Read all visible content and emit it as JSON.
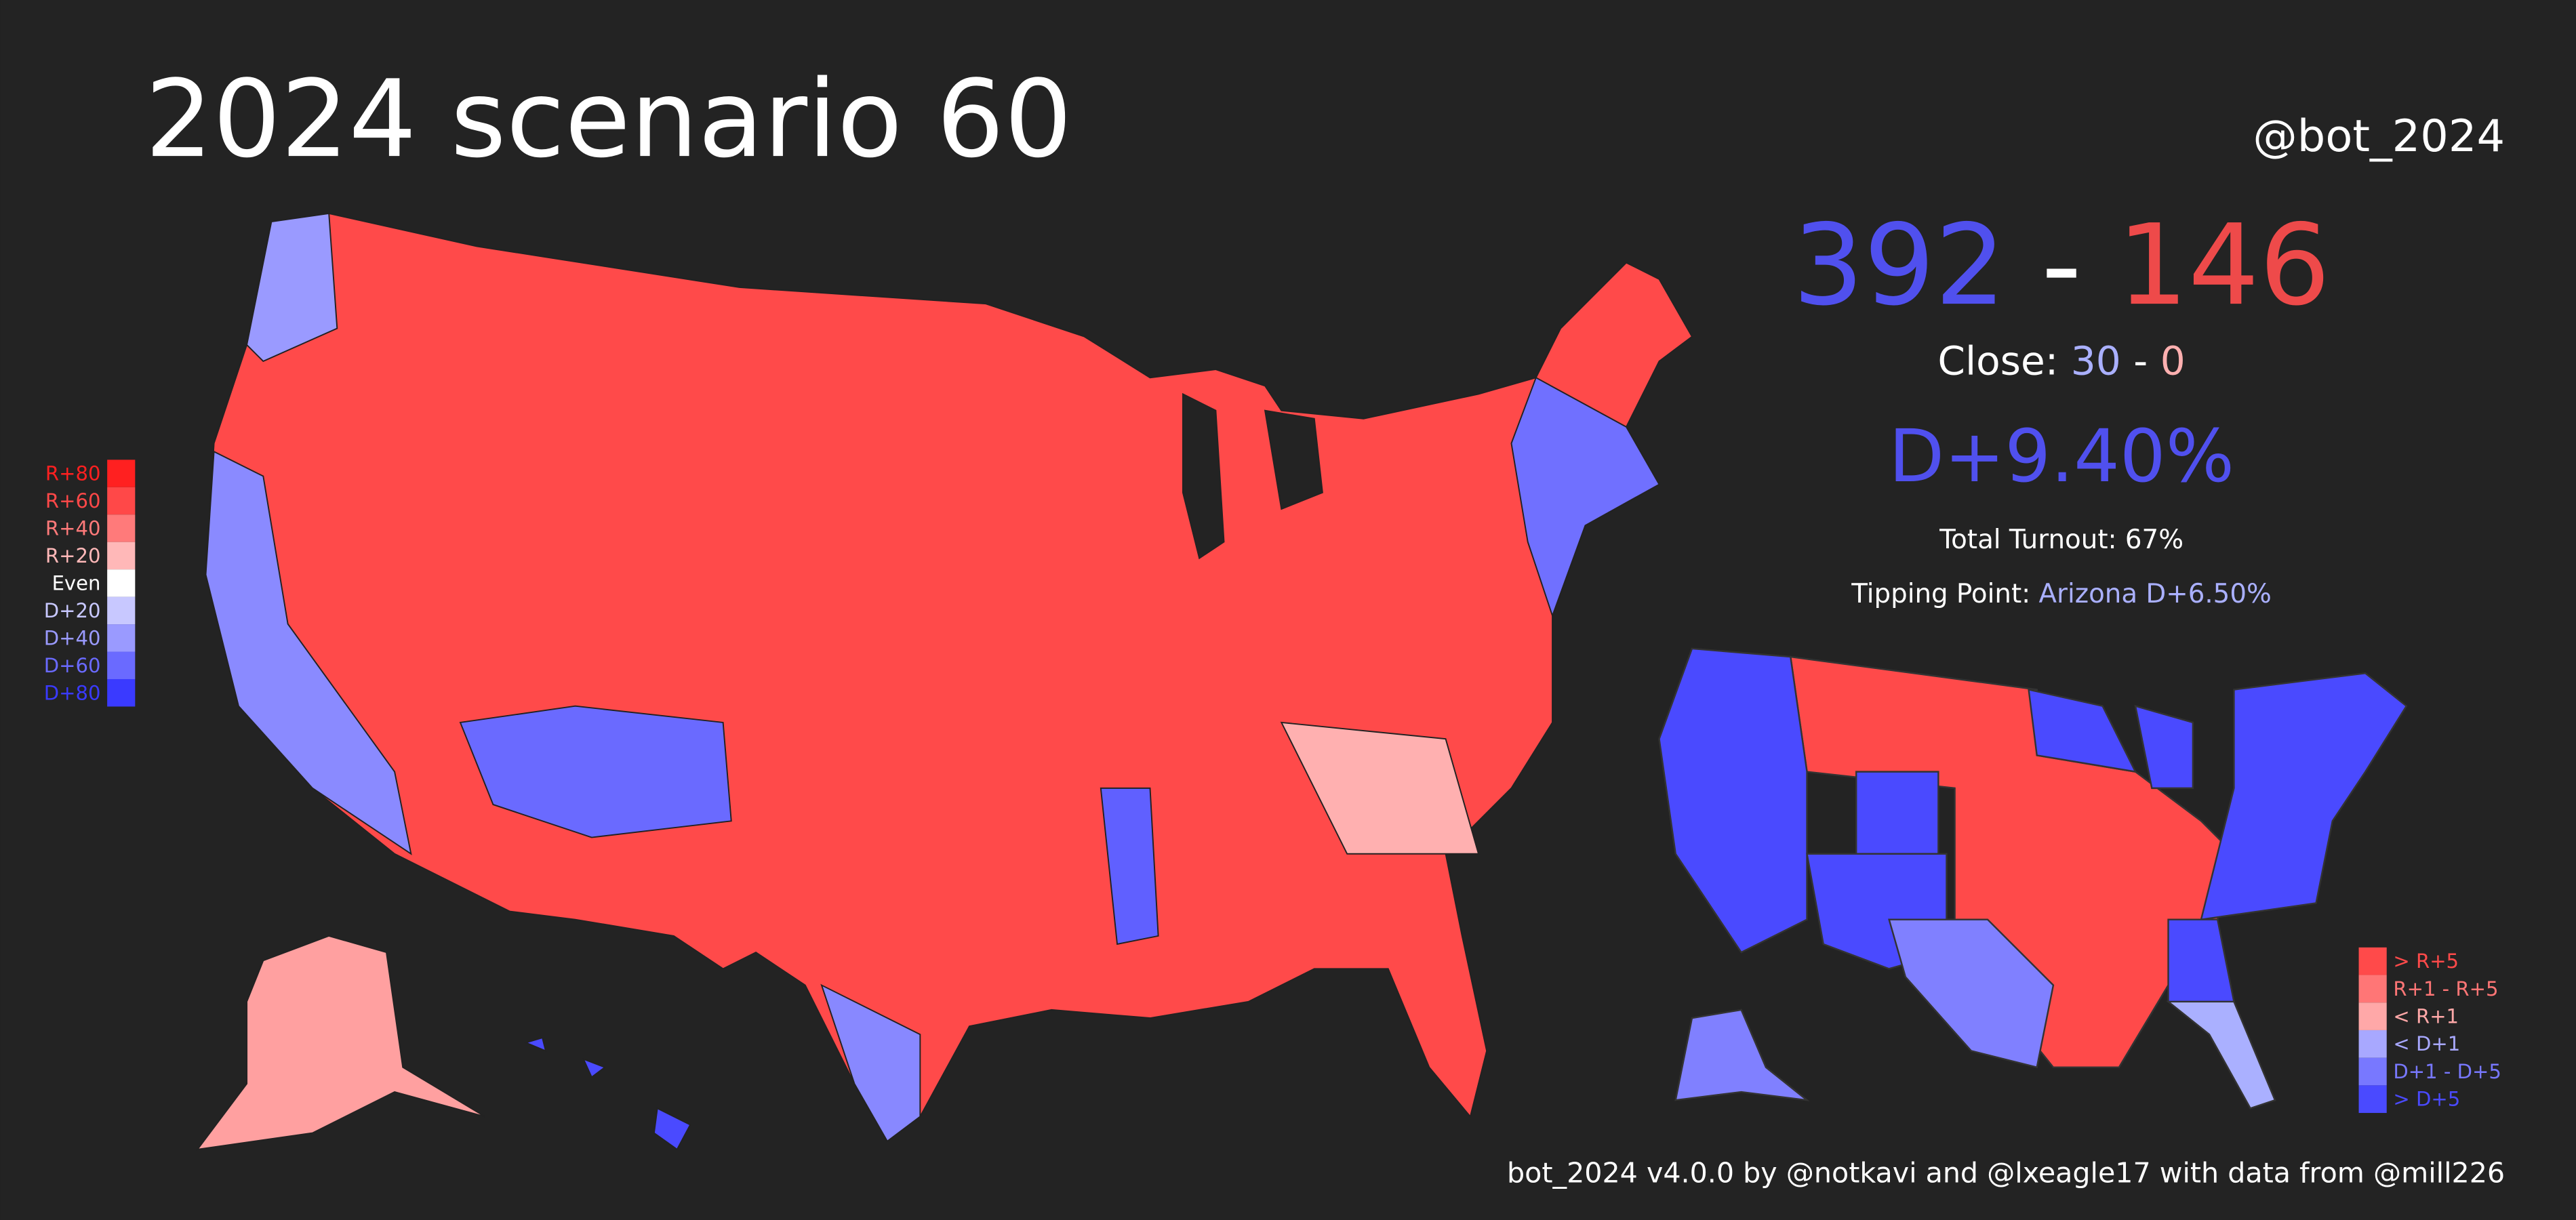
{
  "header": {
    "title": "2024 scenario 60",
    "handle": "@bot_2024"
  },
  "summary": {
    "dem_ev": "392",
    "separator": "-",
    "rep_ev": "146",
    "close_label": "Close:",
    "close_dem": "30",
    "close_separator": "-",
    "close_rep": "0",
    "margin": "D+9.40%",
    "turnout": "Total Turnout: 67%",
    "tipping_label": "Tipping Point:",
    "tipping_value": "Arizona D+6.50%"
  },
  "county_legend": [
    {
      "label": "R+80",
      "color": "#ff2020"
    },
    {
      "label": "R+60",
      "color": "#ff4848"
    },
    {
      "label": "R+40",
      "color": "#ff7a7a"
    },
    {
      "label": "R+20",
      "color": "#ffb8b8"
    },
    {
      "label": "Even",
      "color": "#ffffff"
    },
    {
      "label": "D+20",
      "color": "#c8c8ff"
    },
    {
      "label": "D+40",
      "color": "#9a9aff"
    },
    {
      "label": "D+60",
      "color": "#6a6aff"
    },
    {
      "label": "D+80",
      "color": "#3a3aff"
    }
  ],
  "state_legend": [
    {
      "label": "> R+5",
      "color": "#ff4a4a"
    },
    {
      "label": "R+1 - R+5",
      "color": "#ff7676"
    },
    {
      "label": "< R+1",
      "color": "#ffa8a8"
    },
    {
      "label": "< D+1",
      "color": "#a8a8ff"
    },
    {
      "label": "D+1 - D+5",
      "color": "#7878ff"
    },
    {
      "label": "> D+5",
      "color": "#4a4aff"
    }
  ],
  "footer": "bot_2024 v4.0.0 by @notkavi and @lxeagle17 with data from @mill226"
}
